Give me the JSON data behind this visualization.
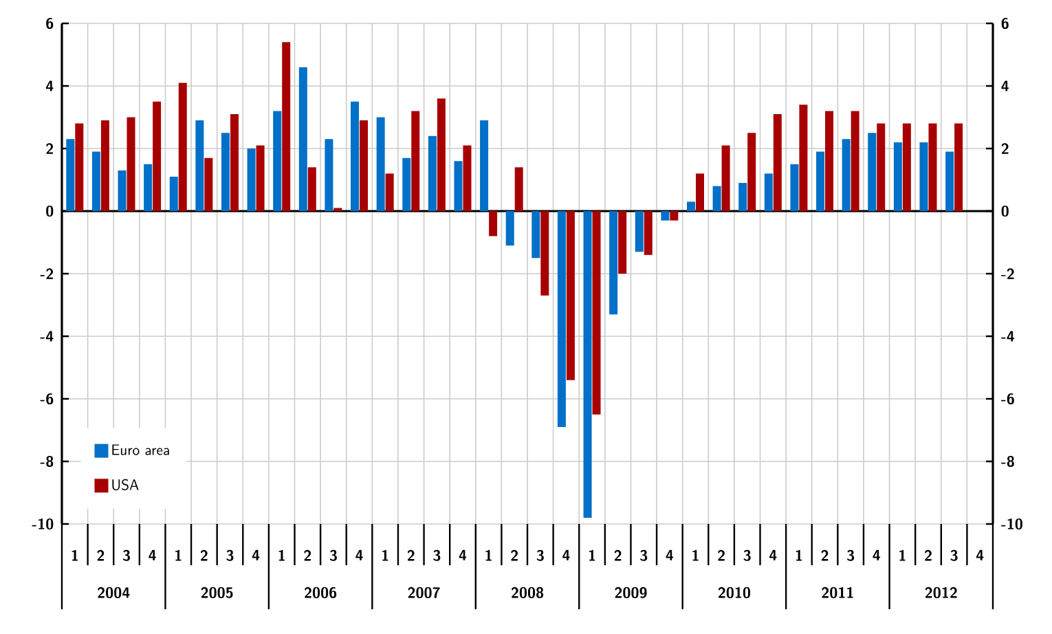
{
  "chart_data": {
    "type": "bar",
    "categories": [
      "1",
      "2",
      "3",
      "4",
      "1",
      "2",
      "3",
      "4",
      "1",
      "2",
      "3",
      "4",
      "1",
      "2",
      "3",
      "4",
      "1",
      "2",
      "3",
      "4",
      "1",
      "2",
      "3",
      "4",
      "1",
      "2",
      "3",
      "4",
      "1",
      "2",
      "3",
      "4",
      "1",
      "2",
      "3",
      "4"
    ],
    "series": [
      {
        "name": "Euro area",
        "color": "#0070c8",
        "values": [
          2.3,
          1.9,
          1.3,
          1.5,
          1.1,
          2.9,
          2.5,
          2.0,
          3.2,
          4.6,
          2.3,
          3.5,
          3.0,
          1.7,
          2.4,
          1.6,
          2.9,
          -1.1,
          -1.5,
          -6.9,
          -9.8,
          -3.3,
          -1.3,
          -0.3,
          0.3,
          0.8,
          0.9,
          1.2,
          1.5,
          1.9,
          2.3,
          2.5,
          2.2,
          2.2,
          1.9,
          null
        ]
      },
      {
        "name": "USA",
        "color": "#a80000",
        "values": [
          2.8,
          2.9,
          3.0,
          3.5,
          4.1,
          1.7,
          3.1,
          2.1,
          5.4,
          1.4,
          0.1,
          2.9,
          1.2,
          3.2,
          3.6,
          2.1,
          -0.8,
          1.4,
          -2.7,
          -5.4,
          -6.5,
          -2.0,
          -1.4,
          -0.3,
          1.2,
          2.1,
          2.5,
          3.1,
          3.4,
          3.2,
          3.2,
          2.8,
          2.8,
          2.8,
          2.8,
          null
        ]
      }
    ],
    "ylim": [
      -10,
      6
    ],
    "yticks": [
      -10,
      -8,
      -6,
      -4,
      -2,
      0,
      2,
      4,
      6
    ],
    "y2lim": [
      -10,
      6
    ],
    "y2ticks": [
      -10,
      -8,
      -6,
      -4,
      -2,
      0,
      2,
      4,
      6
    ],
    "annotations": [
      "2004",
      "2005",
      "2006",
      "2007",
      "2008",
      "2009",
      "2010",
      "2011",
      "2012"
    ],
    "grid": true,
    "legend": "bottom left"
  }
}
